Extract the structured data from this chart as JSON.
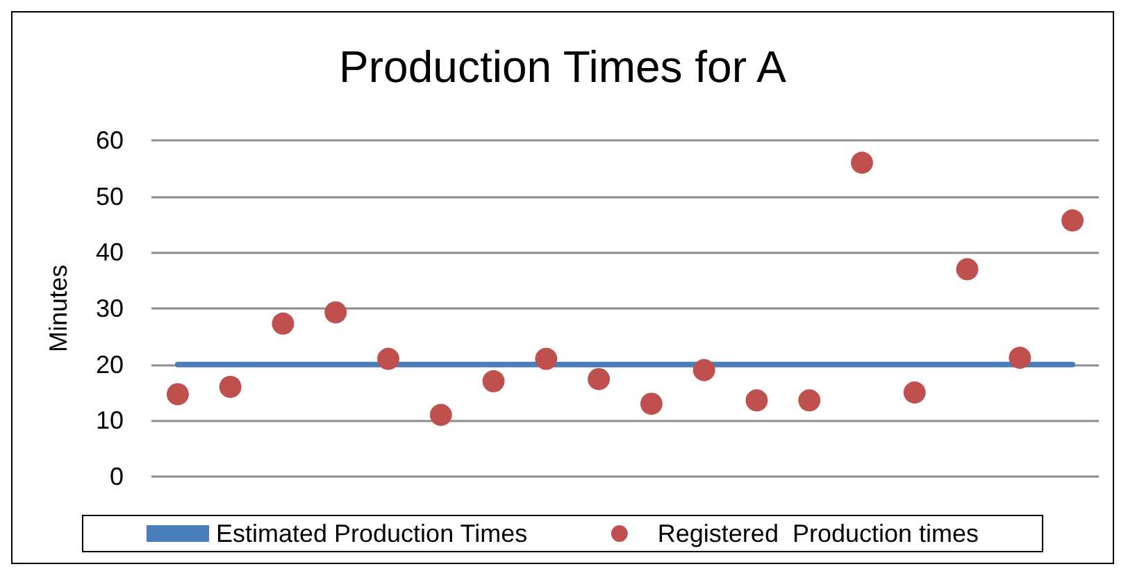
{
  "chart_data": {
    "type": "scatter",
    "title": "Production Times for A",
    "ylabel": "Minutes",
    "categories": [
      null,
      null,
      null,
      null,
      null,
      null,
      null,
      null,
      null,
      null,
      null,
      null,
      null,
      null,
      null,
      null,
      null,
      null
    ],
    "series": [
      {
        "name": "Estimated Production Times",
        "type": "line",
        "color": "#4a7ebb",
        "marker": "none",
        "line_style": "solid",
        "values": [
          20,
          20,
          20,
          20,
          20,
          20,
          20,
          20,
          20,
          20,
          20,
          20,
          20,
          20,
          20,
          20,
          20,
          20
        ]
      },
      {
        "name": "Registered  Production times",
        "color": "#c0504d",
        "marker": "circle",
        "values": [
          14.7,
          16,
          27.3,
          29.3,
          21,
          11,
          17,
          21,
          17.4,
          13,
          19,
          13.6,
          13.6,
          56,
          15,
          37,
          21.2,
          45.7
        ]
      }
    ],
    "ylim": [
      0,
      60
    ],
    "yticks": [
      0,
      10,
      20,
      30,
      40,
      50,
      60
    ],
    "grid": "y",
    "legend": "bottom"
  }
}
